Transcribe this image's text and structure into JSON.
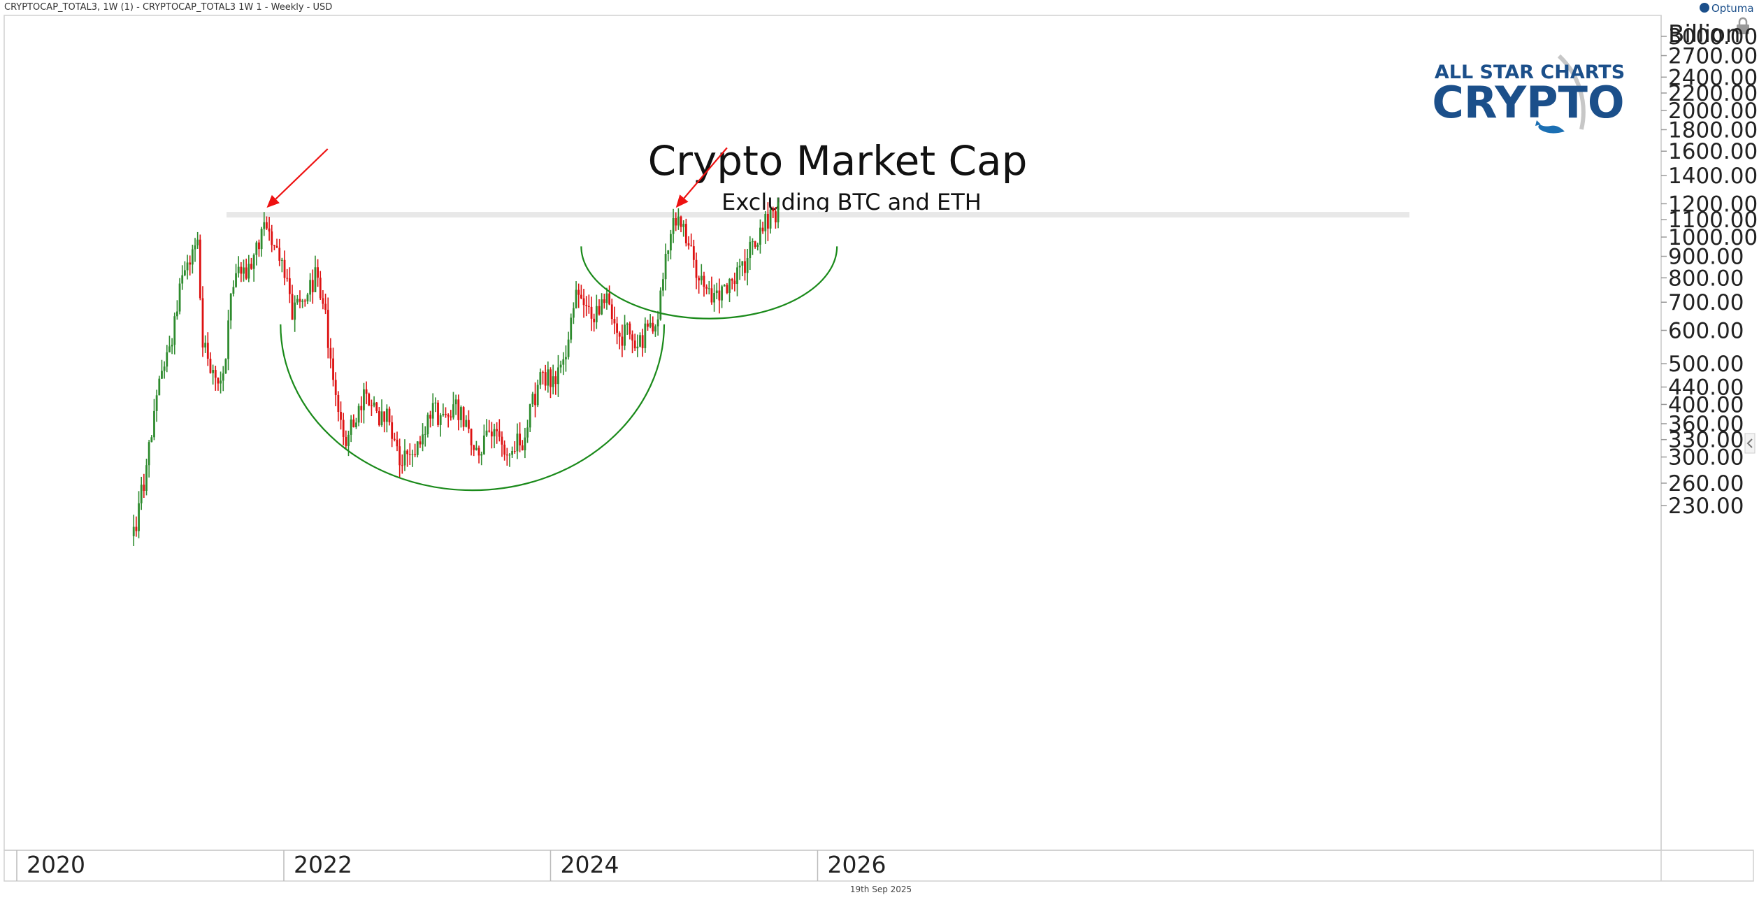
{
  "header": {
    "instrument": "CRYPTOCAP_TOTAL3, 1W (1) - CRYPTOCAP_TOTAL3  1W  1 - Weekly - USD",
    "brand": "Optuma"
  },
  "logo": {
    "line1": "ALL STAR CHARTS",
    "line2": "CRYPTO"
  },
  "footer": {
    "date": "19th Sep 2025"
  },
  "colors": {
    "up": "#2e8b2e",
    "down": "#dd1111",
    "arc": "#1a8a1a",
    "arrow": "#ee1111",
    "resistance": "#e8e8e8",
    "logo": "#1b4f8a"
  },
  "chart_data": {
    "type": "candlestick",
    "title": "Crypto Market Cap",
    "subtitle": "Excluding BTC and ETH",
    "y_unit": "Billion",
    "y_scale": "log",
    "y_ticks": [
      "3000.00",
      "2700.00",
      "2400.00",
      "2200.00",
      "2000.00",
      "1800.00",
      "1600.00",
      "1400.00",
      "1200.00",
      "1100.00",
      "1000.00",
      "900.00",
      "800.00",
      "700.00",
      "600.00",
      "500.00",
      "440.00",
      "400.00",
      "360.00",
      "330.00",
      "300.00",
      "260.00",
      "230.00"
    ],
    "y_tick_values": [
      3000,
      2700,
      2400,
      2200,
      2000,
      1800,
      1600,
      1400,
      1200,
      1100,
      1000,
      900,
      800,
      700,
      600,
      500,
      440,
      400,
      360,
      330,
      300,
      260,
      230
    ],
    "x_ticks": [
      "2020",
      "2022",
      "2024",
      "2026"
    ],
    "x_tick_values": [
      "2020-01-01",
      "2022-01-01",
      "2024-01-01",
      "2026-01-01"
    ],
    "resistance_level": 1130,
    "price_path": [
      [
        "2020-11-16",
        195
      ],
      [
        "2020-12-14",
        265
      ],
      [
        "2021-01-04",
        350
      ],
      [
        "2021-02-01",
        470
      ],
      [
        "2021-02-22",
        520
      ],
      [
        "2021-03-15",
        700
      ],
      [
        "2021-04-12",
        880
      ],
      [
        "2021-05-10",
        940
      ],
      [
        "2021-05-24",
        580
      ],
      [
        "2021-06-21",
        470
      ],
      [
        "2021-07-19",
        470
      ],
      [
        "2021-08-09",
        700
      ],
      [
        "2021-08-30",
        900
      ],
      [
        "2021-09-20",
        780
      ],
      [
        "2021-10-18",
        940
      ],
      [
        "2021-11-08",
        1110
      ],
      [
        "2021-11-29",
        960
      ],
      [
        "2021-12-27",
        880
      ],
      [
        "2022-01-24",
        650
      ],
      [
        "2022-02-21",
        700
      ],
      [
        "2022-03-28",
        800
      ],
      [
        "2022-04-25",
        640
      ],
      [
        "2022-05-16",
        460
      ],
      [
        "2022-06-13",
        330
      ],
      [
        "2022-07-11",
        360
      ],
      [
        "2022-08-15",
        430
      ],
      [
        "2022-09-12",
        375
      ],
      [
        "2022-10-10",
        370
      ],
      [
        "2022-11-14",
        300
      ],
      [
        "2022-12-19",
        290
      ],
      [
        "2023-01-16",
        350
      ],
      [
        "2023-02-13",
        385
      ],
      [
        "2023-03-13",
        375
      ],
      [
        "2023-04-17",
        400
      ],
      [
        "2023-05-15",
        360
      ],
      [
        "2023-06-12",
        305
      ],
      [
        "2023-07-17",
        345
      ],
      [
        "2023-08-21",
        325
      ],
      [
        "2023-09-18",
        315
      ],
      [
        "2023-10-16",
        330
      ],
      [
        "2023-11-13",
        400
      ],
      [
        "2023-12-11",
        470
      ],
      [
        "2024-01-15",
        460
      ],
      [
        "2024-02-12",
        530
      ],
      [
        "2024-03-11",
        760
      ],
      [
        "2024-04-08",
        680
      ],
      [
        "2024-05-06",
        660
      ],
      [
        "2024-06-03",
        700
      ],
      [
        "2024-07-01",
        560
      ],
      [
        "2024-07-29",
        600
      ],
      [
        "2024-08-26",
        545
      ],
      [
        "2024-09-23",
        610
      ],
      [
        "2024-10-21",
        640
      ],
      [
        "2024-11-11",
        880
      ],
      [
        "2024-12-09",
        1130
      ],
      [
        "2025-01-06",
        1000
      ],
      [
        "2025-02-03",
        850
      ],
      [
        "2025-03-03",
        760
      ],
      [
        "2025-04-07",
        700
      ],
      [
        "2025-05-05",
        800
      ],
      [
        "2025-06-02",
        810
      ],
      [
        "2025-07-07",
        950
      ],
      [
        "2025-08-04",
        1060
      ],
      [
        "2025-09-15",
        1160
      ]
    ],
    "annotations": {
      "arrows": [
        {
          "from": [
            "2022-05-01",
            1620
          ],
          "to": [
            "2021-11-15",
            1130
          ]
        },
        {
          "from": [
            "2025-04-28",
            1630
          ],
          "to": [
            "2024-12-09",
            1130
          ]
        }
      ],
      "arcs": [
        {
          "cx": "2023-06-01",
          "cy_value": 620,
          "rx_days": 525,
          "bottom_value": 250
        },
        {
          "cx": "2025-03-10",
          "cy_value": 950,
          "rx_days": 350,
          "bottom_value": 640
        }
      ]
    }
  }
}
